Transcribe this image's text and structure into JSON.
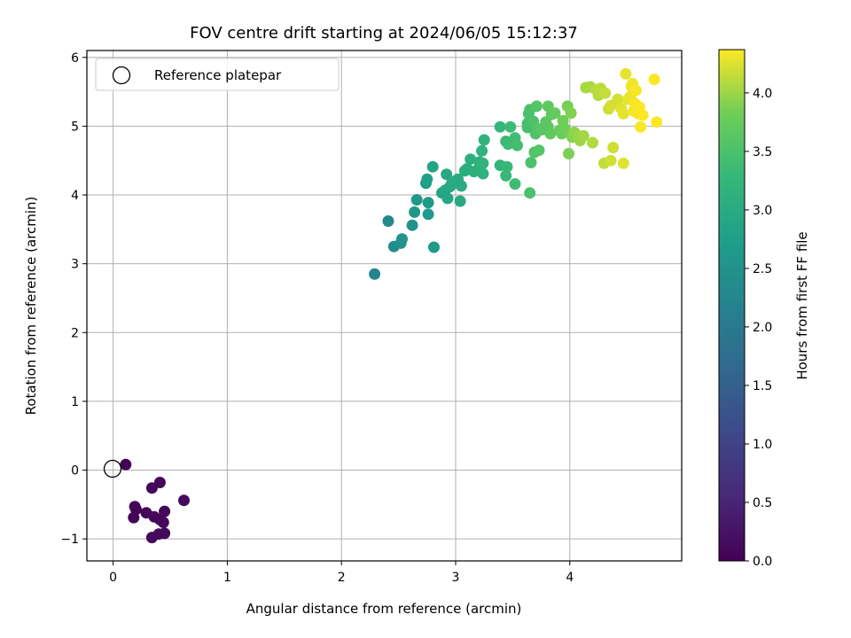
{
  "chart_data": {
    "type": "scatter",
    "title": "FOV centre drift starting at 2024/06/05 15:12:37",
    "xlabel": "Angular distance from reference (arcmin)",
    "ylabel": "Rotation from reference (arcmin)",
    "xlim": [
      -0.23,
      4.98
    ],
    "ylim": [
      -1.32,
      6.1
    ],
    "xticks": [
      0,
      1,
      2,
      3,
      4
    ],
    "yticks": [
      -1,
      0,
      1,
      2,
      3,
      4,
      5,
      6
    ],
    "grid": true,
    "legend": {
      "position": "top-left",
      "entries": [
        "Reference platepar"
      ]
    },
    "reference_point": {
      "x": 0,
      "y": 0,
      "label": "Reference platepar",
      "marker": "open-circle"
    },
    "colorbar": {
      "label": "Hours from first FF file",
      "range": [
        0,
        4.37
      ],
      "ticks": [
        "0.0",
        "0.5",
        "1.0",
        "1.5",
        "2.0",
        "2.5",
        "3.0",
        "3.5",
        "4.0"
      ],
      "tick_values": [
        0,
        0.5,
        1.0,
        1.5,
        2.0,
        2.5,
        3.0,
        3.5,
        4.0
      ],
      "colormap": "viridis"
    },
    "series": [
      {
        "points": [
          [
            0.11,
            0.08,
            0.0
          ],
          [
            0.19,
            -0.53,
            0.05
          ],
          [
            0.2,
            -0.57,
            0.05
          ],
          [
            0.18,
            -0.69,
            0.06
          ],
          [
            0.29,
            -0.62,
            0.07
          ],
          [
            0.34,
            -0.26,
            0.07
          ],
          [
            0.41,
            -0.18,
            0.08
          ],
          [
            0.36,
            -0.68,
            0.08
          ],
          [
            0.41,
            -0.72,
            0.09
          ],
          [
            0.45,
            -0.6,
            0.09
          ],
          [
            0.44,
            -0.76,
            0.1
          ],
          [
            0.34,
            -0.98,
            0.1
          ],
          [
            0.4,
            -0.93,
            0.11
          ],
          [
            0.45,
            -0.92,
            0.11
          ],
          [
            0.62,
            -0.44,
            0.12
          ],
          [
            2.29,
            2.85,
            2.25
          ],
          [
            2.41,
            3.62,
            2.35
          ],
          [
            2.46,
            3.25,
            2.4
          ],
          [
            2.52,
            3.3,
            2.45
          ],
          [
            2.53,
            3.36,
            2.5
          ],
          [
            2.62,
            3.56,
            2.52
          ],
          [
            2.64,
            3.75,
            2.6
          ],
          [
            2.66,
            3.93,
            2.62
          ],
          [
            2.81,
            3.24,
            2.65
          ],
          [
            2.76,
            3.72,
            2.65
          ],
          [
            2.76,
            3.89,
            2.7
          ],
          [
            2.74,
            4.17,
            2.75
          ],
          [
            2.75,
            4.23,
            2.8
          ],
          [
            2.8,
            4.41,
            2.85
          ],
          [
            2.88,
            4.03,
            2.85
          ],
          [
            2.91,
            4.07,
            2.9
          ],
          [
            2.93,
            3.95,
            2.9
          ],
          [
            2.92,
            4.3,
            2.95
          ],
          [
            2.95,
            4.12,
            2.95
          ],
          [
            2.97,
            4.19,
            3.0
          ],
          [
            3.02,
            4.23,
            3.0
          ],
          [
            3.04,
            3.91,
            3.0
          ],
          [
            3.05,
            4.13,
            3.02
          ],
          [
            3.08,
            4.35,
            3.05
          ],
          [
            3.1,
            4.38,
            3.05
          ],
          [
            3.13,
            4.52,
            3.08
          ],
          [
            3.16,
            4.34,
            3.1
          ],
          [
            3.2,
            4.38,
            3.1
          ],
          [
            3.21,
            4.48,
            3.12
          ],
          [
            3.24,
            4.31,
            3.15
          ],
          [
            3.23,
            4.64,
            3.15
          ],
          [
            3.25,
            4.8,
            3.17
          ],
          [
            3.24,
            4.46,
            3.2
          ],
          [
            3.39,
            4.43,
            3.25
          ],
          [
            3.39,
            4.99,
            3.28
          ],
          [
            3.44,
            4.28,
            3.3
          ],
          [
            3.45,
            4.41,
            3.3
          ],
          [
            3.44,
            4.78,
            3.32
          ],
          [
            3.46,
            4.74,
            3.35
          ],
          [
            3.48,
            4.99,
            3.35
          ],
          [
            3.52,
            4.16,
            3.38
          ],
          [
            3.52,
            4.83,
            3.4
          ],
          [
            3.54,
            4.72,
            3.42
          ],
          [
            3.63,
            4.98,
            3.45
          ],
          [
            3.63,
            5.04,
            3.45
          ],
          [
            3.64,
            5.18,
            3.48
          ],
          [
            3.65,
            5.24,
            3.5
          ],
          [
            3.66,
            4.47,
            3.5
          ],
          [
            3.65,
            4.03,
            3.5
          ],
          [
            3.68,
            5.07,
            3.52
          ],
          [
            3.69,
            4.62,
            3.55
          ],
          [
            3.7,
            4.89,
            3.55
          ],
          [
            3.71,
            5.29,
            3.58
          ],
          [
            3.73,
            4.65,
            3.58
          ],
          [
            3.73,
            4.96,
            3.6
          ],
          [
            3.76,
            4.95,
            3.62
          ],
          [
            3.79,
            5.06,
            3.65
          ],
          [
            3.81,
            4.99,
            3.65
          ],
          [
            3.81,
            5.29,
            3.68
          ],
          [
            3.83,
            4.89,
            3.7
          ],
          [
            3.84,
            5.17,
            3.7
          ],
          [
            3.87,
            5.19,
            3.72
          ],
          [
            3.91,
            4.94,
            3.75
          ],
          [
            3.93,
            4.89,
            3.78
          ],
          [
            3.94,
            5.08,
            3.8
          ],
          [
            3.96,
            4.96,
            3.82
          ],
          [
            3.98,
            5.29,
            3.85
          ],
          [
            3.99,
            4.6,
            3.87
          ],
          [
            4.01,
            5.19,
            3.9
          ],
          [
            4.02,
            4.84,
            3.92
          ],
          [
            4.04,
            4.91,
            3.95
          ],
          [
            4.07,
            4.86,
            3.98
          ],
          [
            4.09,
            4.79,
            4.0
          ],
          [
            4.12,
            4.86,
            4.02
          ],
          [
            4.14,
            5.56,
            4.05
          ],
          [
            4.18,
            5.57,
            4.05
          ],
          [
            4.2,
            4.76,
            4.08
          ],
          [
            4.23,
            5.53,
            4.1
          ],
          [
            4.25,
            5.45,
            4.1
          ],
          [
            4.27,
            5.55,
            4.12
          ],
          [
            4.3,
            4.46,
            4.15
          ],
          [
            4.31,
            5.48,
            4.15
          ],
          [
            4.34,
            5.25,
            4.18
          ],
          [
            4.36,
            4.5,
            4.2
          ],
          [
            4.38,
            4.69,
            4.2
          ],
          [
            4.36,
            5.3,
            4.22
          ],
          [
            4.42,
            5.39,
            4.22
          ],
          [
            4.45,
            5.26,
            4.25
          ],
          [
            4.47,
            4.46,
            4.25
          ],
          [
            4.47,
            5.18,
            4.28
          ],
          [
            4.49,
            5.76,
            4.28
          ],
          [
            4.51,
            5.39,
            4.3
          ],
          [
            4.53,
            5.43,
            4.3
          ],
          [
            4.54,
            5.58,
            4.32
          ],
          [
            4.55,
            5.62,
            4.32
          ],
          [
            4.56,
            5.22,
            4.34
          ],
          [
            4.57,
            5.33,
            4.34
          ],
          [
            4.58,
            5.52,
            4.35
          ],
          [
            4.6,
            5.18,
            4.35
          ],
          [
            4.61,
            5.28,
            4.36
          ],
          [
            4.62,
            4.99,
            4.36
          ],
          [
            4.64,
            5.16,
            4.37
          ],
          [
            4.74,
            5.68,
            4.37
          ],
          [
            4.76,
            5.06,
            4.37
          ]
        ]
      }
    ]
  }
}
